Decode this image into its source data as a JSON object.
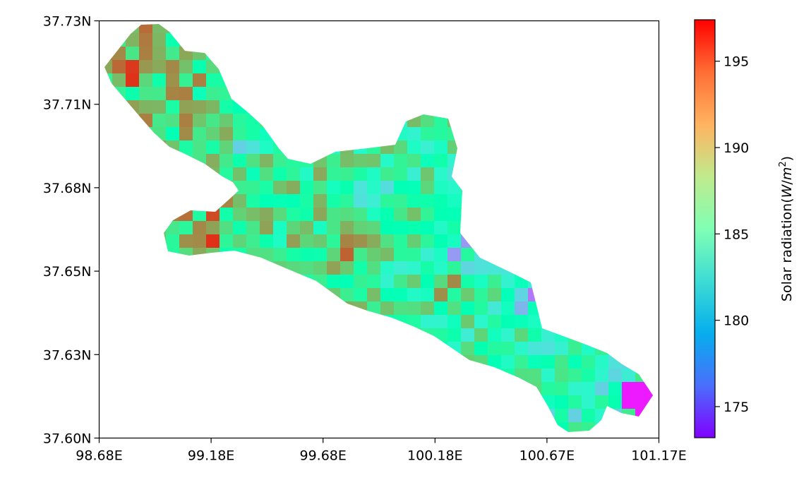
{
  "chart_data": {
    "type": "heatmap",
    "title": "",
    "xlabel": "",
    "ylabel": "",
    "x_ticks": [
      "98.68E",
      "99.18E",
      "99.68E",
      "100.18E",
      "100.67E",
      "101.17E"
    ],
    "y_ticks": [
      "37.73N",
      "37.71N",
      "37.68N",
      "37.65N",
      "37.63N",
      "37.60N"
    ],
    "xlim": [
      98.68,
      101.17
    ],
    "ylim": [
      37.6,
      37.73
    ],
    "colorbar": {
      "label": "Solar radiation(W/m²)",
      "label_parts": {
        "prefix": "Solar radiation(",
        "w": "W",
        "slash": "/",
        "m": "m",
        "exp": "2",
        "suffix": ")"
      },
      "ticks": [
        "175",
        "180",
        "185",
        "190",
        "195"
      ],
      "tick_values": [
        175,
        180,
        185,
        190,
        195
      ],
      "range": [
        173.2,
        197.4
      ],
      "colormap": "rainbow"
    },
    "grid": false,
    "region_values_sample": {
      "approx_min": 173.5,
      "approx_max": 197.3,
      "typical": 187
    }
  },
  "colors": {
    "axis": "#000000",
    "background": "#ffffff"
  }
}
